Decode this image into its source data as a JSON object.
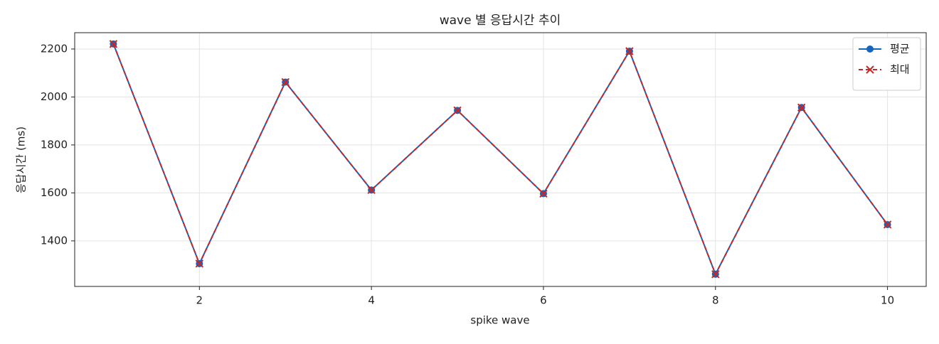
{
  "chart_data": {
    "type": "line",
    "title": "wave 별 응답시간 추이",
    "x_label": "spike wave",
    "y_label": "응답시간 (ms)",
    "x": [
      1,
      2,
      3,
      4,
      5,
      6,
      7,
      8,
      9,
      10
    ],
    "series": [
      {
        "name": "평균",
        "color": "#1565c0",
        "linestyle": "solid",
        "marker": "circle",
        "values": [
          2221,
          1305,
          2062,
          1612,
          1944,
          1597,
          2191,
          1261,
          1956,
          1468
        ]
      },
      {
        "name": "최대",
        "color": "#c62828",
        "linestyle": "dashed",
        "marker": "x",
        "values": [
          2221,
          1305,
          2062,
          1612,
          1944,
          1597,
          2191,
          1261,
          1956,
          1468
        ]
      }
    ],
    "xlim": [
      0.55,
      10.45
    ],
    "ylim": [
      1210,
      2268
    ],
    "xticks": [
      2,
      4,
      6,
      8,
      10
    ],
    "yticks": [
      1400,
      1600,
      1800,
      2000,
      2200
    ],
    "grid": true,
    "legend": "upper right"
  }
}
